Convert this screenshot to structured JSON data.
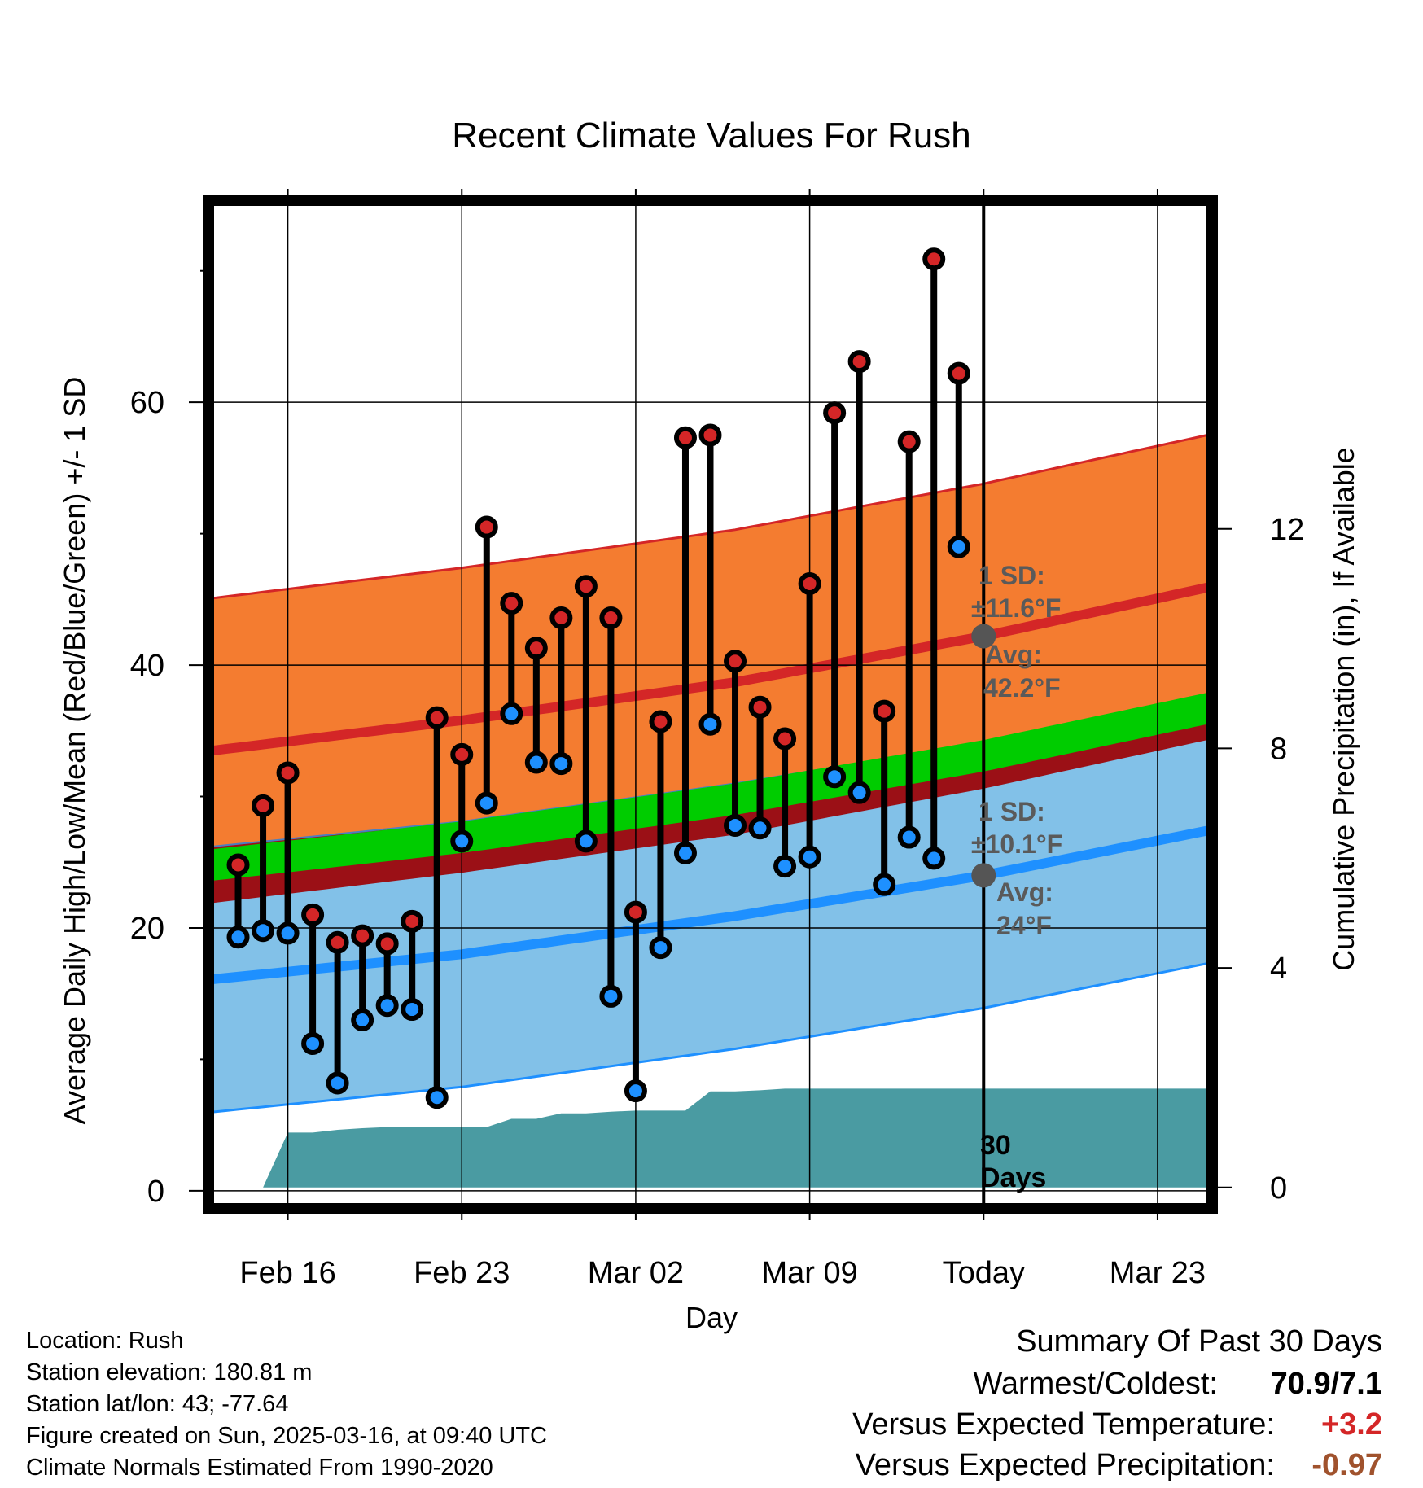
{
  "chart_data": {
    "type": "line",
    "title": "Recent Climate Values For Rush",
    "xlabel": "Day",
    "ylabel": "Average Daily High/Low/Mean (Red/Blue/Green) +/- 1 SD",
    "y2label": "Cumulative Precipitation (in), If Available",
    "ylim": [
      -1,
      75
    ],
    "y2lim": [
      -0.3,
      17.9
    ],
    "grid": true,
    "x_tick_labels": [
      "Feb 16",
      "Feb 23",
      "Mar 02",
      "Mar 09",
      "Today",
      "Mar 23"
    ],
    "x_tick_dates": [
      "2025-02-16",
      "2025-02-23",
      "2025-03-02",
      "2025-03-09",
      "2025-03-16",
      "2025-03-23"
    ],
    "y_ticks": [
      0,
      20,
      40,
      60
    ],
    "y2_ticks": [
      0,
      4,
      8,
      12
    ],
    "x_range": [
      "2025-02-13",
      "2025-03-25"
    ],
    "today": "2025-03-16",
    "days": [
      "2025-02-14",
      "2025-02-15",
      "2025-02-16",
      "2025-02-17",
      "2025-02-18",
      "2025-02-19",
      "2025-02-20",
      "2025-02-21",
      "2025-02-22",
      "2025-02-23",
      "2025-02-24",
      "2025-02-25",
      "2025-02-26",
      "2025-02-27",
      "2025-02-28",
      "2025-03-01",
      "2025-03-02",
      "2025-03-03",
      "2025-03-04",
      "2025-03-05",
      "2025-03-06",
      "2025-03-07",
      "2025-03-08",
      "2025-03-09",
      "2025-03-10",
      "2025-03-11",
      "2025-03-12",
      "2025-03-13",
      "2025-03-14",
      "2025-03-15"
    ],
    "observed_high": [
      24.8,
      29.3,
      31.8,
      21.0,
      18.9,
      19.4,
      18.8,
      20.5,
      36.0,
      33.2,
      50.5,
      44.7,
      41.3,
      43.6,
      46.0,
      43.6,
      21.2,
      35.7,
      57.3,
      57.5,
      40.3,
      36.8,
      34.4,
      46.2,
      59.2,
      63.1,
      36.5,
      57.0,
      70.9,
      62.2
    ],
    "observed_low": [
      19.3,
      19.8,
      19.6,
      11.2,
      8.2,
      13.0,
      14.1,
      13.8,
      7.1,
      26.6,
      29.5,
      36.3,
      32.6,
      32.5,
      26.6,
      14.8,
      7.6,
      18.5,
      25.7,
      35.5,
      27.8,
      27.6,
      24.7,
      25.4,
      31.5,
      30.3,
      23.3,
      26.9,
      25.3,
      49.0
    ],
    "normal_x": [
      "2025-02-13",
      "2025-02-23",
      "2025-03-06",
      "2025-03-16",
      "2025-03-25"
    ],
    "normal_high": [
      33.5,
      35.8,
      38.7,
      42.2,
      45.9
    ],
    "normal_high_sd": 11.6,
    "normal_low": [
      16.1,
      18.0,
      20.9,
      24.0,
      27.4
    ],
    "normal_low_sd": 10.1,
    "normal_mean": [
      24.8,
      26.9,
      29.8,
      33.1,
      36.7
    ],
    "normal_mean_band": [
      1.2,
      1.2,
      1.2,
      1.2,
      1.2
    ],
    "precip_cumulative": [
      [
        "2025-02-13",
        0.0
      ],
      [
        "2025-02-14",
        0.0
      ],
      [
        "2025-02-15",
        0.0
      ],
      [
        "2025-02-16",
        1.0
      ],
      [
        "2025-02-17",
        1.0
      ],
      [
        "2025-02-18",
        1.05
      ],
      [
        "2025-02-19",
        1.08
      ],
      [
        "2025-02-20",
        1.1
      ],
      [
        "2025-02-21",
        1.1
      ],
      [
        "2025-02-22",
        1.1
      ],
      [
        "2025-02-23",
        1.1
      ],
      [
        "2025-02-24",
        1.1
      ],
      [
        "2025-02-25",
        1.25
      ],
      [
        "2025-02-26",
        1.25
      ],
      [
        "2025-02-27",
        1.35
      ],
      [
        "2025-02-28",
        1.35
      ],
      [
        "2025-03-01",
        1.38
      ],
      [
        "2025-03-02",
        1.4
      ],
      [
        "2025-03-03",
        1.4
      ],
      [
        "2025-03-04",
        1.4
      ],
      [
        "2025-03-05",
        1.75
      ],
      [
        "2025-03-06",
        1.75
      ],
      [
        "2025-03-07",
        1.77
      ],
      [
        "2025-03-08",
        1.8
      ],
      [
        "2025-03-09",
        1.8
      ],
      [
        "2025-03-16",
        1.8
      ],
      [
        "2025-03-25",
        1.8
      ]
    ],
    "colors": {
      "high": "#d42627",
      "low": "#1e90ff",
      "mean": "#00cc00",
      "high_band": "#f47c30",
      "low_band": "#82c1e8",
      "overlap": "#9b1016",
      "precip": "#4a9ba2"
    }
  },
  "annotations": {
    "high_sd_label": "1 SD:",
    "high_sd_value": "±11.6°F",
    "high_avg_label": "Avg:",
    "high_avg_value": "42.2°F",
    "low_sd_label": "1 SD:",
    "low_sd_value": "±10.1°F",
    "low_avg_label": "Avg:",
    "low_avg_value": "24°F",
    "period_line1": "30",
    "period_line2": "Days"
  },
  "footer": {
    "location": "Location: Rush",
    "elevation": "Station elevation: 180.81 m",
    "latlon": "Station lat/lon: 43; -77.64",
    "created": "Figure created on Sun, 2025-03-16, at 09:40 UTC",
    "normals": "Climate Normals Estimated From 1990-2020"
  },
  "summary": {
    "title": "Summary Of Past 30 Days",
    "warmest_coldest_label": "Warmest/Coldest:",
    "warmest_coldest_value": "70.9/7.1",
    "temp_label": "Versus Expected Temperature:",
    "temp_value": "+3.2",
    "temp_color": "#d42627",
    "precip_label": "Versus Expected Precipitation:",
    "precip_value": "-0.97",
    "precip_color": "#a0522d"
  }
}
